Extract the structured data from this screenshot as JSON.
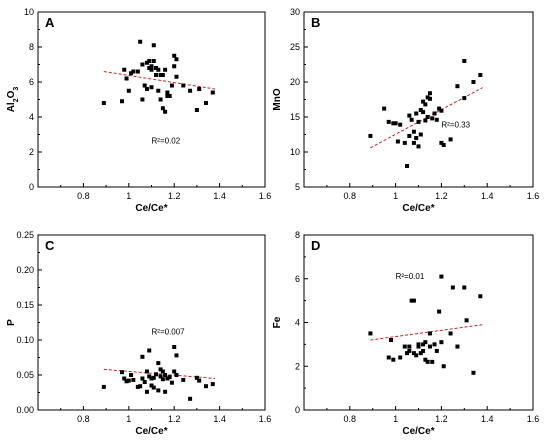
{
  "chart_data": [
    {
      "type": "scatter",
      "panel": "A",
      "xlabel": "Ce/Ce*",
      "ylabel": "Al2O3",
      "ylabel_main": "Al",
      "ylabel_sub1": "2",
      "ylabel_mid": "O",
      "ylabel_sub2": "3",
      "xlim": [
        0.6,
        1.6
      ],
      "ylim": [
        0,
        10
      ],
      "xticks": [
        0.8,
        1.0,
        1.2,
        1.4,
        1.6
      ],
      "yticks": [
        0,
        2,
        4,
        6,
        8,
        10
      ],
      "r2_label": "R²=0.02",
      "r2_pos": [
        1.1,
        2.5
      ],
      "trend": [
        [
          0.89,
          6.6
        ],
        [
          1.38,
          5.6
        ]
      ],
      "grid": false,
      "points": [
        [
          0.89,
          4.8
        ],
        [
          0.97,
          4.9
        ],
        [
          0.98,
          6.7
        ],
        [
          0.99,
          6.2
        ],
        [
          1.0,
          5.5
        ],
        [
          1.01,
          6.5
        ],
        [
          1.02,
          6.6
        ],
        [
          1.04,
          6.6
        ],
        [
          1.05,
          8.3
        ],
        [
          1.06,
          7.0
        ],
        [
          1.06,
          5.0
        ],
        [
          1.07,
          5.8
        ],
        [
          1.08,
          5.6
        ],
        [
          1.08,
          7.1
        ],
        [
          1.09,
          6.8
        ],
        [
          1.09,
          7.2
        ],
        [
          1.1,
          6.9
        ],
        [
          1.1,
          6.7
        ],
        [
          1.1,
          5.7
        ],
        [
          1.11,
          8.1
        ],
        [
          1.11,
          7.2
        ],
        [
          1.12,
          6.4
        ],
        [
          1.12,
          6.8
        ],
        [
          1.13,
          5.5
        ],
        [
          1.13,
          6.7
        ],
        [
          1.14,
          5.0
        ],
        [
          1.14,
          6.4
        ],
        [
          1.15,
          4.5
        ],
        [
          1.15,
          6.4
        ],
        [
          1.16,
          4.3
        ],
        [
          1.16,
          6.7
        ],
        [
          1.17,
          5.2
        ],
        [
          1.17,
          5.4
        ],
        [
          1.18,
          5.2
        ],
        [
          1.19,
          5.8
        ],
        [
          1.2,
          7.5
        ],
        [
          1.2,
          6.9
        ],
        [
          1.21,
          7.3
        ],
        [
          1.21,
          6.3
        ],
        [
          1.24,
          5.8
        ],
        [
          1.27,
          5.5
        ],
        [
          1.3,
          4.4
        ],
        [
          1.31,
          5.6
        ],
        [
          1.34,
          4.8
        ],
        [
          1.37,
          5.4
        ]
      ]
    },
    {
      "type": "scatter",
      "panel": "B",
      "xlabel": "Ce/Ce*",
      "ylabel": "MnO",
      "xlim": [
        0.6,
        1.6
      ],
      "ylim": [
        5,
        30
      ],
      "xticks": [
        0.8,
        1.0,
        1.2,
        1.4,
        1.6
      ],
      "yticks": [
        5,
        10,
        15,
        20,
        25,
        30
      ],
      "r2_label": "R²=0.33",
      "r2_pos": [
        1.2,
        13.5
      ],
      "trend": [
        [
          0.89,
          10.6
        ],
        [
          1.38,
          19.2
        ]
      ],
      "grid": false,
      "points": [
        [
          0.89,
          12.3
        ],
        [
          0.95,
          16.2
        ],
        [
          0.97,
          14.3
        ],
        [
          0.99,
          14.1
        ],
        [
          1.0,
          14.1
        ],
        [
          1.01,
          11.5
        ],
        [
          1.02,
          13.9
        ],
        [
          1.04,
          11.3
        ],
        [
          1.05,
          8.0
        ],
        [
          1.06,
          12.3
        ],
        [
          1.06,
          15.2
        ],
        [
          1.07,
          14.6
        ],
        [
          1.08,
          12.9
        ],
        [
          1.08,
          11.3
        ],
        [
          1.09,
          12.0
        ],
        [
          1.09,
          15.5
        ],
        [
          1.1,
          10.8
        ],
        [
          1.1,
          14.3
        ],
        [
          1.11,
          16.0
        ],
        [
          1.11,
          12.5
        ],
        [
          1.12,
          17.2
        ],
        [
          1.12,
          15.7
        ],
        [
          1.13,
          14.5
        ],
        [
          1.13,
          16.8
        ],
        [
          1.14,
          17.8
        ],
        [
          1.14,
          15.0
        ],
        [
          1.15,
          18.4
        ],
        [
          1.15,
          17.6
        ],
        [
          1.16,
          14.8
        ],
        [
          1.17,
          15.5
        ],
        [
          1.18,
          14.6
        ],
        [
          1.19,
          16.2
        ],
        [
          1.2,
          11.3
        ],
        [
          1.2,
          15.9
        ],
        [
          1.21,
          11.0
        ],
        [
          1.24,
          11.8
        ],
        [
          1.27,
          19.4
        ],
        [
          1.3,
          17.7
        ],
        [
          1.3,
          23.0
        ],
        [
          1.34,
          20.0
        ],
        [
          1.37,
          21.0
        ]
      ]
    },
    {
      "type": "scatter",
      "panel": "C",
      "xlabel": "Ce/Ce*",
      "ylabel": "P",
      "xlim": [
        0.6,
        1.6
      ],
      "ylim": [
        0,
        0.25
      ],
      "xticks": [
        0.8,
        1.0,
        1.2,
        1.4,
        1.6
      ],
      "yticks": [
        0.0,
        0.05,
        0.1,
        0.15,
        0.2,
        0.25
      ],
      "ytick_labels": [
        "0.00",
        "0.05",
        "0.10",
        "0.15",
        "0.20",
        "0.25"
      ],
      "r2_label": "R²=0.007",
      "r2_pos": [
        1.1,
        0.108
      ],
      "trend": [
        [
          0.89,
          0.058
        ],
        [
          1.38,
          0.045
        ]
      ],
      "grid": false,
      "points": [
        [
          0.89,
          0.033
        ],
        [
          0.97,
          0.054
        ],
        [
          0.98,
          0.045
        ],
        [
          0.99,
          0.041
        ],
        [
          1.0,
          0.042
        ],
        [
          1.01,
          0.05
        ],
        [
          1.02,
          0.043
        ],
        [
          1.04,
          0.033
        ],
        [
          1.05,
          0.034
        ],
        [
          1.06,
          0.076
        ],
        [
          1.06,
          0.045
        ],
        [
          1.07,
          0.04
        ],
        [
          1.08,
          0.055
        ],
        [
          1.08,
          0.026
        ],
        [
          1.09,
          0.048
        ],
        [
          1.09,
          0.085
        ],
        [
          1.1,
          0.045
        ],
        [
          1.1,
          0.035
        ],
        [
          1.11,
          0.032
        ],
        [
          1.11,
          0.046
        ],
        [
          1.12,
          0.051
        ],
        [
          1.13,
          0.028
        ],
        [
          1.13,
          0.067
        ],
        [
          1.14,
          0.058
        ],
        [
          1.14,
          0.048
        ],
        [
          1.15,
          0.044
        ],
        [
          1.15,
          0.055
        ],
        [
          1.16,
          0.026
        ],
        [
          1.16,
          0.05
        ],
        [
          1.17,
          0.045
        ],
        [
          1.18,
          0.047
        ],
        [
          1.19,
          0.039
        ],
        [
          1.2,
          0.09
        ],
        [
          1.2,
          0.055
        ],
        [
          1.21,
          0.078
        ],
        [
          1.21,
          0.05
        ],
        [
          1.24,
          0.043
        ],
        [
          1.27,
          0.016
        ],
        [
          1.3,
          0.046
        ],
        [
          1.31,
          0.042
        ],
        [
          1.34,
          0.034
        ],
        [
          1.37,
          0.037
        ]
      ]
    },
    {
      "type": "scatter",
      "panel": "D",
      "xlabel": "Ce/Ce*",
      "ylabel": "Fe",
      "xlim": [
        0.6,
        1.6
      ],
      "ylim": [
        0,
        8
      ],
      "xticks": [
        0.8,
        1.0,
        1.2,
        1.4,
        1.6
      ],
      "yticks": [
        0,
        2,
        4,
        6,
        8
      ],
      "r2_label": "R²=0.01",
      "r2_pos": [
        1.0,
        6.0
      ],
      "trend": [
        [
          0.89,
          3.2
        ],
        [
          1.38,
          3.9
        ]
      ],
      "grid": false,
      "points": [
        [
          0.89,
          3.5
        ],
        [
          0.97,
          2.4
        ],
        [
          0.98,
          3.2
        ],
        [
          0.99,
          2.3
        ],
        [
          1.02,
          2.4
        ],
        [
          1.04,
          2.9
        ],
        [
          1.05,
          2.6
        ],
        [
          1.06,
          2.7
        ],
        [
          1.06,
          2.9
        ],
        [
          1.07,
          5.0
        ],
        [
          1.08,
          2.6
        ],
        [
          1.08,
          5.0
        ],
        [
          1.09,
          2.5
        ],
        [
          1.1,
          2.9
        ],
        [
          1.1,
          3.0
        ],
        [
          1.11,
          2.6
        ],
        [
          1.12,
          2.7
        ],
        [
          1.12,
          3.0
        ],
        [
          1.13,
          2.3
        ],
        [
          1.13,
          3.1
        ],
        [
          1.14,
          2.2
        ],
        [
          1.15,
          3.5
        ],
        [
          1.15,
          2.9
        ],
        [
          1.16,
          2.2
        ],
        [
          1.17,
          3.0
        ],
        [
          1.18,
          2.7
        ],
        [
          1.19,
          4.5
        ],
        [
          1.2,
          6.1
        ],
        [
          1.2,
          3.1
        ],
        [
          1.21,
          2.0
        ],
        [
          1.24,
          3.5
        ],
        [
          1.25,
          5.6
        ],
        [
          1.27,
          2.9
        ],
        [
          1.3,
          5.6
        ],
        [
          1.31,
          4.1
        ],
        [
          1.34,
          1.7
        ],
        [
          1.37,
          5.2
        ]
      ]
    }
  ]
}
